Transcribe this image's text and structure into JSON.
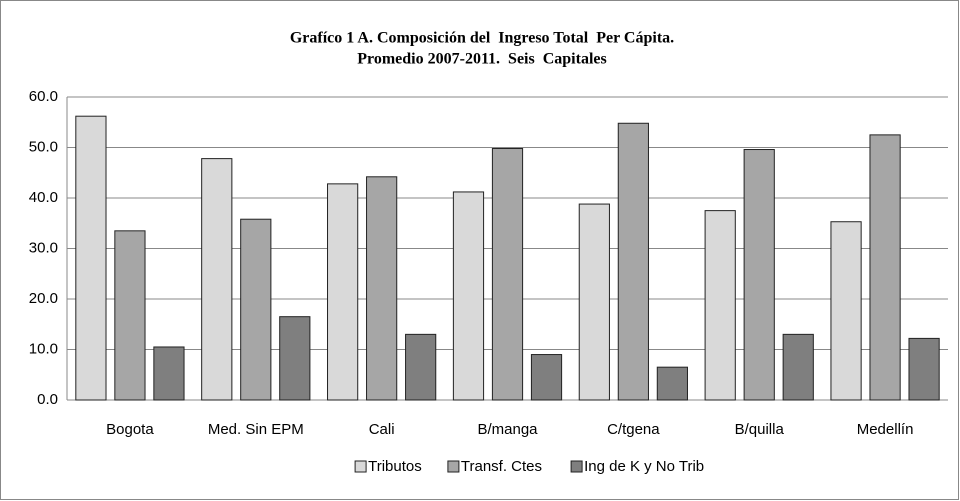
{
  "chart_data": {
    "type": "bar",
    "title": [
      "Grafíco 1 A. Composición del  Ingreso Total  Per Cápita.",
      "Promedio 2007-2011.  Seis  Capitales"
    ],
    "categories": [
      "Bogota",
      "Med. Sin EPM",
      "Cali",
      "B/manga",
      "C/tgena",
      "B/quilla",
      "Medellín"
    ],
    "series": [
      {
        "name": "Tributos",
        "color": "#d9d9d9",
        "values": [
          56.2,
          47.8,
          42.8,
          41.2,
          38.8,
          37.5,
          35.3
        ]
      },
      {
        "name": "Transf. Ctes",
        "color": "#a6a6a6",
        "values": [
          33.5,
          35.8,
          44.2,
          49.8,
          54.8,
          49.6,
          52.5
        ]
      },
      {
        "name": "Ing de K y No Trib",
        "color": "#7f7f7f",
        "values": [
          10.5,
          16.5,
          13.0,
          9.0,
          6.5,
          13.0,
          12.2
        ]
      }
    ],
    "ylim": [
      0,
      60
    ],
    "yticks": [
      {
        "value": 0,
        "label": "0.0"
      },
      {
        "value": 10,
        "label": "10.0"
      },
      {
        "value": 20,
        "label": "20.0"
      },
      {
        "value": 30,
        "label": "30.0"
      },
      {
        "value": 40,
        "label": "40.0"
      },
      {
        "value": 50,
        "label": "50.0"
      },
      {
        "value": 60,
        "label": "60.0"
      }
    ],
    "grid": true,
    "legend": "bottom"
  }
}
